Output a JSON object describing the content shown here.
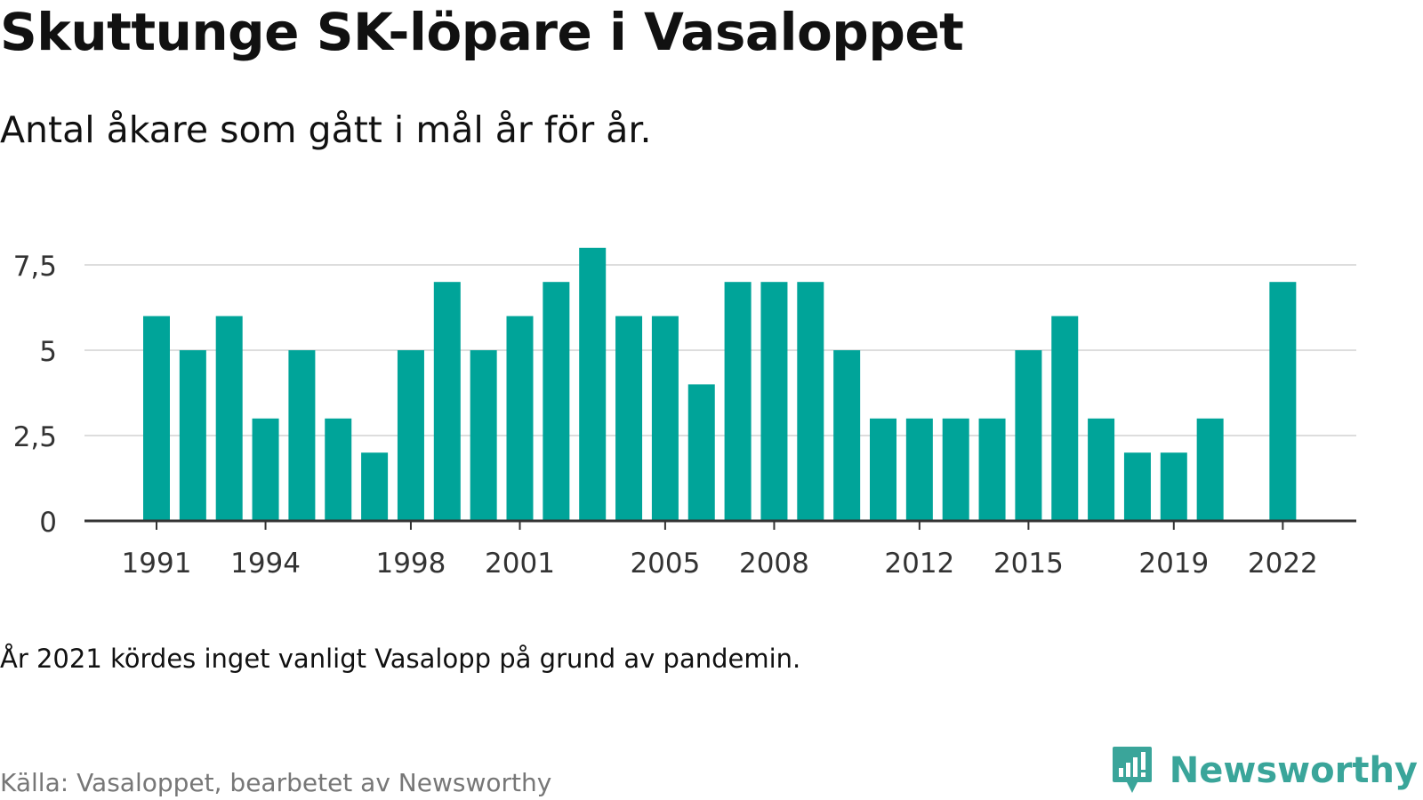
{
  "header": {
    "title": "Skuttunge SK-löpare i Vasaloppet",
    "subtitle": "Antal åkare som gått i mål år för år."
  },
  "footer": {
    "note": "År 2021 kördes inget vanligt Vasalopp på grund av pandemin.",
    "source": "Källa: Vasaloppet, bearbetet av Newsworthy",
    "brand": "Newsworthy",
    "brand_icon": "newsworthy-logo-icon"
  },
  "colors": {
    "bar": "#00a499",
    "grid": "#dddddd",
    "axis": "#333333",
    "brand": "#3aa59a"
  },
  "chart_data": {
    "type": "bar",
    "title": "",
    "xlabel": "",
    "ylabel": "",
    "ylim": [
      0,
      8
    ],
    "grid": true,
    "categories": [
      "1991",
      "1992",
      "1993",
      "1994",
      "1995",
      "1996",
      "1997",
      "1998",
      "1999",
      "2000",
      "2001",
      "2002",
      "2003",
      "2004",
      "2005",
      "2006",
      "2007",
      "2008",
      "2009",
      "2010",
      "2011",
      "2012",
      "2013",
      "2014",
      "2015",
      "2016",
      "2017",
      "2018",
      "2019",
      "2020",
      "2021",
      "2022"
    ],
    "values": [
      6,
      5,
      6,
      3,
      5,
      3,
      2,
      5,
      7,
      5,
      6,
      7,
      8,
      6,
      6,
      4,
      7,
      7,
      7,
      5,
      3,
      3,
      3,
      3,
      5,
      6,
      3,
      2,
      2,
      3,
      null,
      7
    ],
    "x_tick_labels": [
      "1991",
      "1994",
      "1998",
      "2001",
      "2005",
      "2008",
      "2012",
      "2015",
      "2019",
      "2022"
    ],
    "y_ticks": [
      {
        "value": 0,
        "label": "0"
      },
      {
        "value": 2.5,
        "label": "2,5"
      },
      {
        "value": 5,
        "label": "5"
      },
      {
        "value": 7.5,
        "label": "7,5"
      }
    ]
  }
}
